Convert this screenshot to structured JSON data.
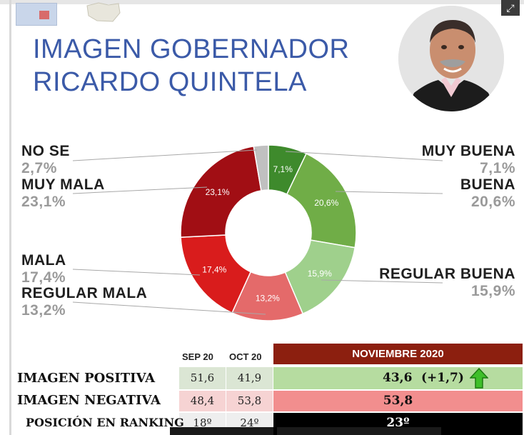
{
  "title": {
    "line1": "IMAGEN GOBERNADOR",
    "line2": "RICARDO QUINTELA"
  },
  "colors": {
    "title": "#3b5aa8",
    "nov_header": "#8c1f0f",
    "positive_row": "#b6dca0",
    "negative_row": "#f28e8e",
    "ranking_row": "#000000",
    "arrow": "#3fbf2a"
  },
  "icons": {
    "expand": "expand-icon",
    "arrow": "arrow-up-icon",
    "photo": "governor-photo"
  },
  "chart_data": {
    "type": "pie",
    "title": "IMAGEN GOBERNADOR RICARDO QUINTELA",
    "slices": [
      {
        "label": "MUY BUENA",
        "value": 7.1,
        "value_text": "7,1%",
        "color": "#3e8a2c"
      },
      {
        "label": "BUENA",
        "value": 20.6,
        "value_text": "20,6%",
        "color": "#70ad47"
      },
      {
        "label": "REGULAR BUENA",
        "value": 15.9,
        "value_text": "15,9%",
        "color": "#9fd08c"
      },
      {
        "label": "REGULAR MALA",
        "value": 13.2,
        "value_text": "13,2%",
        "color": "#e46a6a"
      },
      {
        "label": "MALA",
        "value": 17.4,
        "value_text": "17,4%",
        "color": "#d91c1c"
      },
      {
        "label": "MUY MALA",
        "value": 23.1,
        "value_text": "23,1%",
        "color": "#a10e14"
      },
      {
        "label": "NO SE",
        "value": 2.7,
        "value_text": "2,7%",
        "color": "#c0c0c0"
      }
    ]
  },
  "table": {
    "headers": {
      "sep": "SEP 20",
      "oct": "OCT 20",
      "nov": "NOVIEMBRE 2020"
    },
    "rows": [
      {
        "label": "IMAGEN POSITIVA",
        "sep": "51,6",
        "oct": "41,9",
        "nov": "43,6",
        "change": "(+1,7)"
      },
      {
        "label": "IMAGEN NEGATIVA",
        "sep": "48,4",
        "oct": "53,8",
        "nov": "53,8"
      },
      {
        "label": "POSICIÓN EN RANKING",
        "sep": "18º",
        "oct": "24º",
        "nov": "23º"
      }
    ]
  }
}
